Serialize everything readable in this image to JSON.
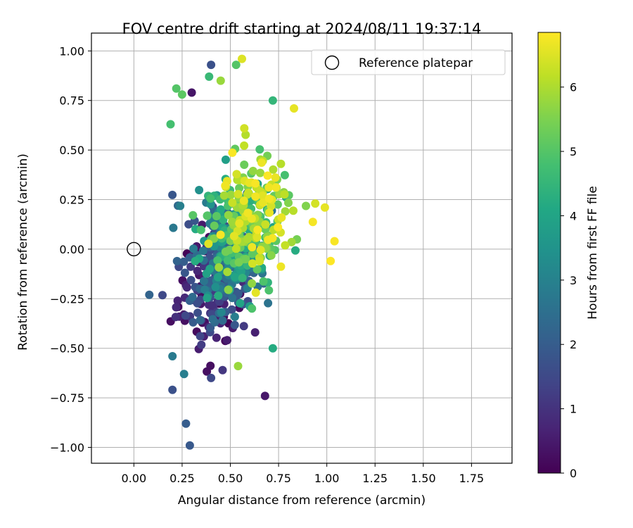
{
  "chart_data": {
    "type": "scatter",
    "title": "FOV centre drift starting at 2024/08/11 19:37:14",
    "xlabel": "Angular distance from reference (arcmin)",
    "ylabel": "Rotation from reference (arcmin)",
    "xlim": [
      -0.22,
      1.96
    ],
    "ylim": [
      -1.08,
      1.09
    ],
    "x_ticks": [
      "0.00",
      "0.25",
      "0.50",
      "0.75",
      "1.00",
      "1.25",
      "1.50",
      "1.75"
    ],
    "y_ticks": [
      "1.00",
      "0.75",
      "0.50",
      "0.25",
      "0.00",
      "−0.25",
      "−0.50",
      "−0.75",
      "−1.00"
    ],
    "grid": true,
    "legend": {
      "position": "top-right",
      "entries": [
        "Reference platepar"
      ]
    },
    "reference_point": {
      "x": 0.0,
      "y": 0.0,
      "label": "Reference platepar"
    },
    "colorbar": {
      "label": "Hours from first FF file",
      "range": [
        0,
        6.85
      ],
      "ticks": [
        "0",
        "1",
        "2",
        "3",
        "4",
        "5",
        "6"
      ],
      "colormap": "viridis"
    },
    "points_note": "Dense cloud of ~600 points; hours increase from lower-left (dark purple) toward upper-right (yellow).",
    "outliers": [
      {
        "x": 0.4,
        "y": 0.93,
        "h": 1.7
      },
      {
        "x": 0.56,
        "y": 0.96,
        "h": 6.5
      },
      {
        "x": 0.53,
        "y": 0.93,
        "h": 5.0
      },
      {
        "x": 0.39,
        "y": 0.87,
        "h": 4.6
      },
      {
        "x": 0.45,
        "y": 0.85,
        "h": 5.8
      },
      {
        "x": 0.22,
        "y": 0.81,
        "h": 5.0
      },
      {
        "x": 0.25,
        "y": 0.78,
        "h": 5.1
      },
      {
        "x": 0.3,
        "y": 0.79,
        "h": 0.4
      },
      {
        "x": 0.19,
        "y": 0.63,
        "h": 4.8
      },
      {
        "x": 0.72,
        "y": 0.75,
        "h": 4.5
      },
      {
        "x": 0.83,
        "y": 0.71,
        "h": 6.6
      },
      {
        "x": 0.08,
        "y": -0.23,
        "h": 2.2
      },
      {
        "x": 0.2,
        "y": -0.54,
        "h": 2.8
      },
      {
        "x": 0.2,
        "y": -0.71,
        "h": 1.7
      },
      {
        "x": 0.26,
        "y": -0.63,
        "h": 2.9
      },
      {
        "x": 0.27,
        "y": -0.88,
        "h": 2.0
      },
      {
        "x": 0.29,
        "y": -0.99,
        "h": 1.9
      },
      {
        "x": 0.4,
        "y": -0.65,
        "h": 1.5
      },
      {
        "x": 0.46,
        "y": -0.61,
        "h": 1.1
      },
      {
        "x": 0.54,
        "y": -0.59,
        "h": 5.8
      },
      {
        "x": 0.72,
        "y": -0.5,
        "h": 4.2
      },
      {
        "x": 1.04,
        "y": 0.04,
        "h": 6.8
      },
      {
        "x": 1.02,
        "y": -0.06,
        "h": 6.9
      },
      {
        "x": 0.99,
        "y": 0.21,
        "h": 6.6
      },
      {
        "x": 0.94,
        "y": 0.23,
        "h": 6.4
      }
    ]
  }
}
